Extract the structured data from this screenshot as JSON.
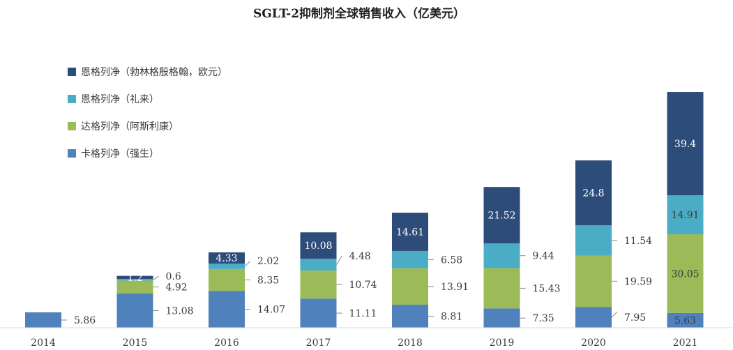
{
  "chart_data": {
    "type": "bar",
    "stacked": true,
    "title": "SGLT-2抑制剂全球销售收入（亿美元）",
    "xlabel": "",
    "ylabel": "",
    "legend_position": "top-left",
    "grid": false,
    "ylim": [
      0,
      95
    ],
    "categories": [
      "2014",
      "2015",
      "2016",
      "2017",
      "2018",
      "2019",
      "2020",
      "2021"
    ],
    "series": [
      {
        "name": "卡格列净（强生）",
        "color": "#4F81BD",
        "values": [
          5.86,
          13.08,
          14.07,
          11.11,
          8.81,
          7.35,
          7.95,
          5.63
        ]
      },
      {
        "name": "达格列净（阿斯利康）",
        "color": "#9BBB59",
        "values": [
          null,
          4.92,
          8.35,
          10.74,
          13.91,
          15.43,
          19.59,
          30.05
        ]
      },
      {
        "name": "恩格列净（礼来）",
        "color": "#4BACC6",
        "values": [
          null,
          0.6,
          2.02,
          4.48,
          6.58,
          9.44,
          11.54,
          14.91
        ]
      },
      {
        "name": "恩格列净（勃林格殷格翰，欧元）",
        "color": "#2E4C7A",
        "values": [
          null,
          1.2,
          4.33,
          10.08,
          14.61,
          21.52,
          24.8,
          39.4
        ]
      }
    ]
  }
}
